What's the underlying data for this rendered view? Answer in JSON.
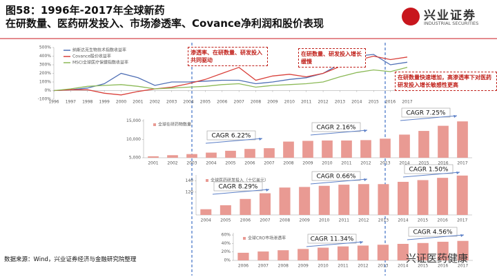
{
  "page": {
    "title_lines": [
      "图58：1996年-2017年全球新药",
      "在研数量、医药研发投入、市场渗透率、Covance净利润和股价表现"
    ],
    "logo": "兴业证券",
    "logo_en": "INDUSTRIAL SECURITIES",
    "source": "数据来源：Wind，兴业证券经济与金融研究院整理",
    "watermark": "兴证医药健康"
  },
  "chart_data": [
    {
      "type": "line",
      "x": [
        1996,
        1997,
        1998,
        1999,
        2000,
        2001,
        2002,
        2003,
        2004,
        2005,
        2006,
        2007,
        2008,
        2009,
        2010,
        2011,
        2012,
        2013,
        2014,
        2015,
        2016,
        2017
      ],
      "xlim": [
        1996,
        2017
      ],
      "xticks": [
        1996,
        1997,
        1998,
        1999,
        2000,
        2001,
        2002,
        2003,
        2004,
        2005,
        2006,
        2007,
        2008,
        2009,
        2010,
        2011,
        2012,
        2013,
        2014,
        2015,
        2016,
        2017
      ],
      "ylim": [
        -100,
        500
      ],
      "yticks": [
        {
          "value": -100,
          "label": "-100%"
        },
        {
          "value": 0,
          "label": "0%"
        },
        {
          "value": 100,
          "label": "100%"
        },
        {
          "value": 200,
          "label": "200%"
        },
        {
          "value": 300,
          "label": "300%"
        },
        {
          "value": 400,
          "label": "400%"
        },
        {
          "value": 500,
          "label": "500%"
        }
      ],
      "series": [
        {
          "name": "纳斯达克生物技术指数收益率",
          "color": "#4f6fb5",
          "values": [
            0,
            10,
            30,
            80,
            200,
            150,
            60,
            100,
            100,
            110,
            120,
            120,
            80,
            100,
            130,
            150,
            200,
            310,
            400,
            420,
            300,
            330
          ]
        },
        {
          "name": "Covance股价收益率",
          "color": "#d9403a",
          "values": [
            0,
            10,
            10,
            -30,
            -50,
            -10,
            20,
            40,
            80,
            130,
            200,
            270,
            120,
            170,
            190,
            160,
            200,
            280,
            350,
            400,
            360,
            390
          ]
        },
        {
          "name": "MSCI全球医疗保健指数收益率",
          "color": "#8bb956",
          "values": [
            0,
            20,
            50,
            60,
            70,
            50,
            20,
            30,
            40,
            50,
            70,
            80,
            40,
            60,
            70,
            80,
            100,
            160,
            210,
            240,
            220,
            270
          ]
        }
      ],
      "annotations": [
        "渗透率、在研数量、研发投入共同驱动",
        "在研数量、研发投入增长缓慢",
        "在研数量快速增加，高渗透率下对医药研发投入增长敏感性更高"
      ]
    },
    {
      "type": "bar",
      "categories": [
        "2001",
        "2002",
        "2003",
        "2004",
        "2005",
        "2006",
        "2007",
        "2008",
        "2009",
        "2010",
        "2011",
        "2012",
        "2013",
        "2014",
        "2015",
        "2016",
        "2017"
      ],
      "ylim": [
        5000,
        15500
      ],
      "yticks": [
        {
          "value": 5000,
          "label": "5,000"
        },
        {
          "value": 10000,
          "label": "10,000"
        },
        {
          "value": 15000,
          "label": "15,000"
        }
      ],
      "series": [
        {
          "name": "全球在研药物数量",
          "color": "#e99a93",
          "values": [
            5400,
            5700,
            6000,
            6400,
            6900,
            7400,
            7600,
            9400,
            9600,
            9700,
            9700,
            9800,
            10200,
            11300,
            12300,
            13700,
            14900
          ]
        }
      ],
      "annotations": [
        "CAGR 6.22%",
        "CAGR 2.16%",
        "CAGR 7.25%"
      ]
    },
    {
      "type": "bar",
      "categories": [
        "2004",
        "2005",
        "2006",
        "2007",
        "2008",
        "2009",
        "2010",
        "2011",
        "2012",
        "2013",
        "2014",
        "2015",
        "2016",
        "2017"
      ],
      "ylim": [
        80,
        150
      ],
      "yticks": [
        120,
        140
      ],
      "series": [
        {
          "name": "全球医药研发投入（十亿美元）",
          "color": "#e99a93",
          "values": [
            90,
            97,
            108,
            118,
            128,
            129,
            131,
            133,
            134,
            134,
            138,
            141,
            145,
            149
          ]
        }
      ],
      "annotations": [
        "CAGR 8.29%",
        "CAGR 0.66%",
        "CAGR 1.50%"
      ]
    },
    {
      "type": "bar",
      "categories": [
        "2006",
        "2007",
        "2008",
        "2009",
        "2010",
        "2011",
        "2012",
        "2013",
        "2014",
        "2015",
        "2016",
        "2017"
      ],
      "ylim": [
        0,
        65
      ],
      "yticks": [
        {
          "value": 0,
          "label": "0%"
        },
        {
          "value": 20,
          "label": "20%"
        },
        {
          "value": 40,
          "label": "40%"
        },
        {
          "value": 60,
          "label": "60%"
        }
      ],
      "series": [
        {
          "name": "全球CRO市场渗透率",
          "color": "#e99a93",
          "values": [
            18,
            21,
            24,
            27,
            30,
            33,
            35,
            37,
            39,
            41,
            44,
            46
          ]
        }
      ],
      "annotations": [
        "CAGR 11.34%",
        "CAGR 4.56%"
      ]
    }
  ]
}
